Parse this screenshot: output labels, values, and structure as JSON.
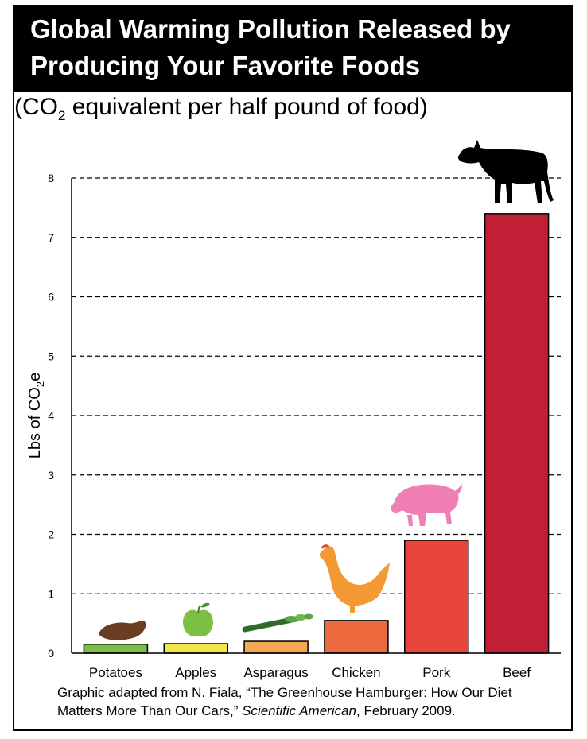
{
  "header": {
    "title": "Global Warming Pollution Released by Producing Your Favorite Foods",
    "subtitle_prefix": "(CO",
    "subtitle_sub": "2",
    "subtitle_suffix": " equivalent per half pound of food)"
  },
  "chart_data": {
    "type": "bar",
    "categories": [
      "Potatoes",
      "Apples",
      "Asparagus",
      "Chicken",
      "Pork",
      "Beef"
    ],
    "values": [
      0.15,
      0.16,
      0.2,
      0.55,
      1.9,
      7.4
    ],
    "ylabel_prefix": "Lbs of CO",
    "ylabel_sub": "2",
    "ylabel_suffix": "e",
    "ylim": [
      0,
      8
    ],
    "yticks": [
      "0",
      "1",
      "2",
      "3",
      "4",
      "5",
      "6",
      "7",
      "8"
    ],
    "grid": "dashed horizontal",
    "bar_colors": [
      "#7cbc47",
      "#f2e54b",
      "#f5a853",
      "#ee6a3f",
      "#e8453c",
      "#c01f35"
    ],
    "icons": [
      "potato-icon",
      "apple-icon",
      "asparagus-icon",
      "chicken-icon",
      "pig-icon",
      "cow-icon"
    ]
  },
  "footnote": {
    "part1": "Graphic adapted from N. Fiala, “The Greenhouse Hamburger: How Our Diet Matters More Than Our Cars,” ",
    "italic": "Scientific American",
    "part2": ", February 2009."
  }
}
